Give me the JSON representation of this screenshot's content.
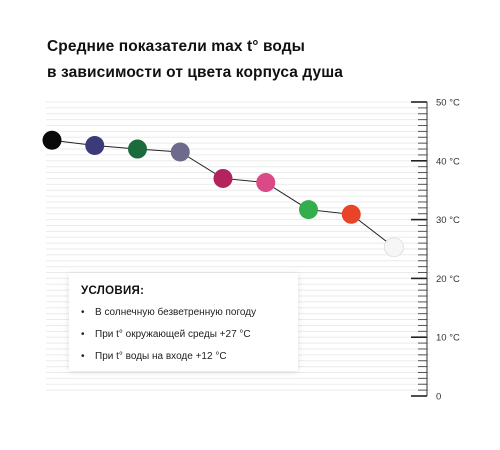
{
  "title": {
    "line1": "Средние показатели max t° воды",
    "line2": "в зависимости от цвета корпуса душа"
  },
  "conditions": {
    "heading": "УСЛОВИЯ:",
    "items": [
      "В солнечную безветренную погоду",
      "При t° окружающей среды +27 °C",
      "При t° воды на входе +12 °C"
    ]
  },
  "chart_data": {
    "type": "line",
    "ylim": [
      0,
      50
    ],
    "y_ticks": [
      {
        "value": 0,
        "label": "0"
      },
      {
        "value": 10,
        "label": "10 °C"
      },
      {
        "value": 20,
        "label": "20 °C"
      },
      {
        "value": 30,
        "label": "30 °C"
      },
      {
        "value": 40,
        "label": "40 °C"
      },
      {
        "value": 50,
        "label": "50 °C"
      }
    ],
    "minor_step": 1,
    "grid": true,
    "points": [
      {
        "y": 43.5,
        "color": "#0a0a0a"
      },
      {
        "y": 42.6,
        "color": "#3c3a78"
      },
      {
        "y": 42.0,
        "color": "#1c6b3c"
      },
      {
        "y": 41.5,
        "color": "#6e6a8c"
      },
      {
        "y": 37.0,
        "color": "#b4245c"
      },
      {
        "y": 36.3,
        "color": "#d94a86"
      },
      {
        "y": 31.7,
        "color": "#34ad4c"
      },
      {
        "y": 30.9,
        "color": "#ea4428"
      },
      {
        "y": 25.3,
        "color": "#f6f6f6"
      }
    ]
  }
}
